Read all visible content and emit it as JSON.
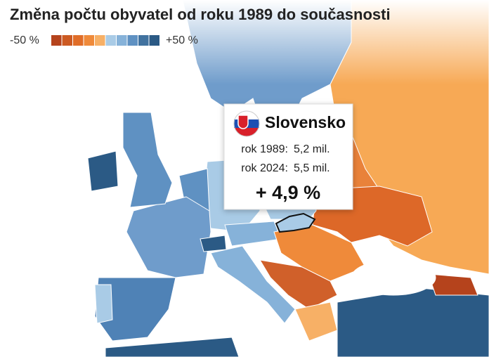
{
  "header": {
    "title": "Změna počtu obyvatel od roku 1989 do současnosti"
  },
  "legend": {
    "min_label": "-50 %",
    "max_label": "+50 %",
    "colors": [
      "#b5431c",
      "#cc5a22",
      "#e06d28",
      "#ef8a3a",
      "#f7b066",
      "#a9cbe6",
      "#86b2d9",
      "#5f91c2",
      "#41729f",
      "#2b5a85"
    ]
  },
  "tooltip": {
    "country": "Slovensko",
    "rows": [
      [
        "rok 1989:",
        "5,2 mil."
      ],
      [
        "rok 2024:",
        "5,5 mil."
      ]
    ],
    "change": "+ 4,9 %"
  }
}
